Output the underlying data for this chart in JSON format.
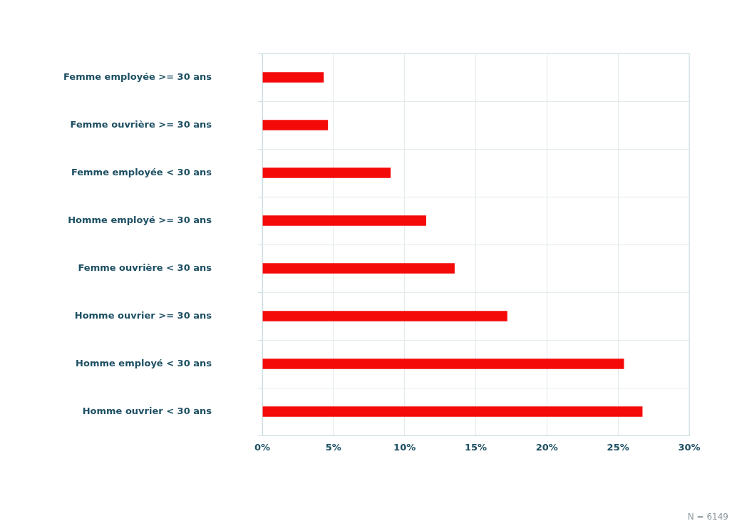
{
  "chart_data": {
    "type": "bar",
    "orientation": "horizontal",
    "categories": [
      "Femme employée >= 30 ans",
      "Femme ouvrière >= 30 ans",
      "Femme employée < 30 ans",
      "Homme employé >= 30 ans",
      "Femme ouvrière < 30 ans",
      "Homme ouvrier >= 30 ans",
      "Homme employé < 30 ans",
      "Homme ouvrier < 30 ans"
    ],
    "values": [
      4.3,
      4.6,
      9.0,
      11.5,
      13.5,
      17.2,
      25.4,
      26.7
    ],
    "color": "#f50a0a",
    "xlim": [
      0,
      30
    ],
    "xticks": [
      {
        "value": 0,
        "label": "0%"
      },
      {
        "value": 5,
        "label": "5%"
      },
      {
        "value": 10,
        "label": "10%"
      },
      {
        "value": 15,
        "label": "15%"
      },
      {
        "value": 20,
        "label": "20%"
      },
      {
        "value": 25,
        "label": "25%"
      },
      {
        "value": 30,
        "label": "30%"
      }
    ],
    "grid": true,
    "legend": false,
    "annotations": [
      "N = 6149"
    ]
  }
}
